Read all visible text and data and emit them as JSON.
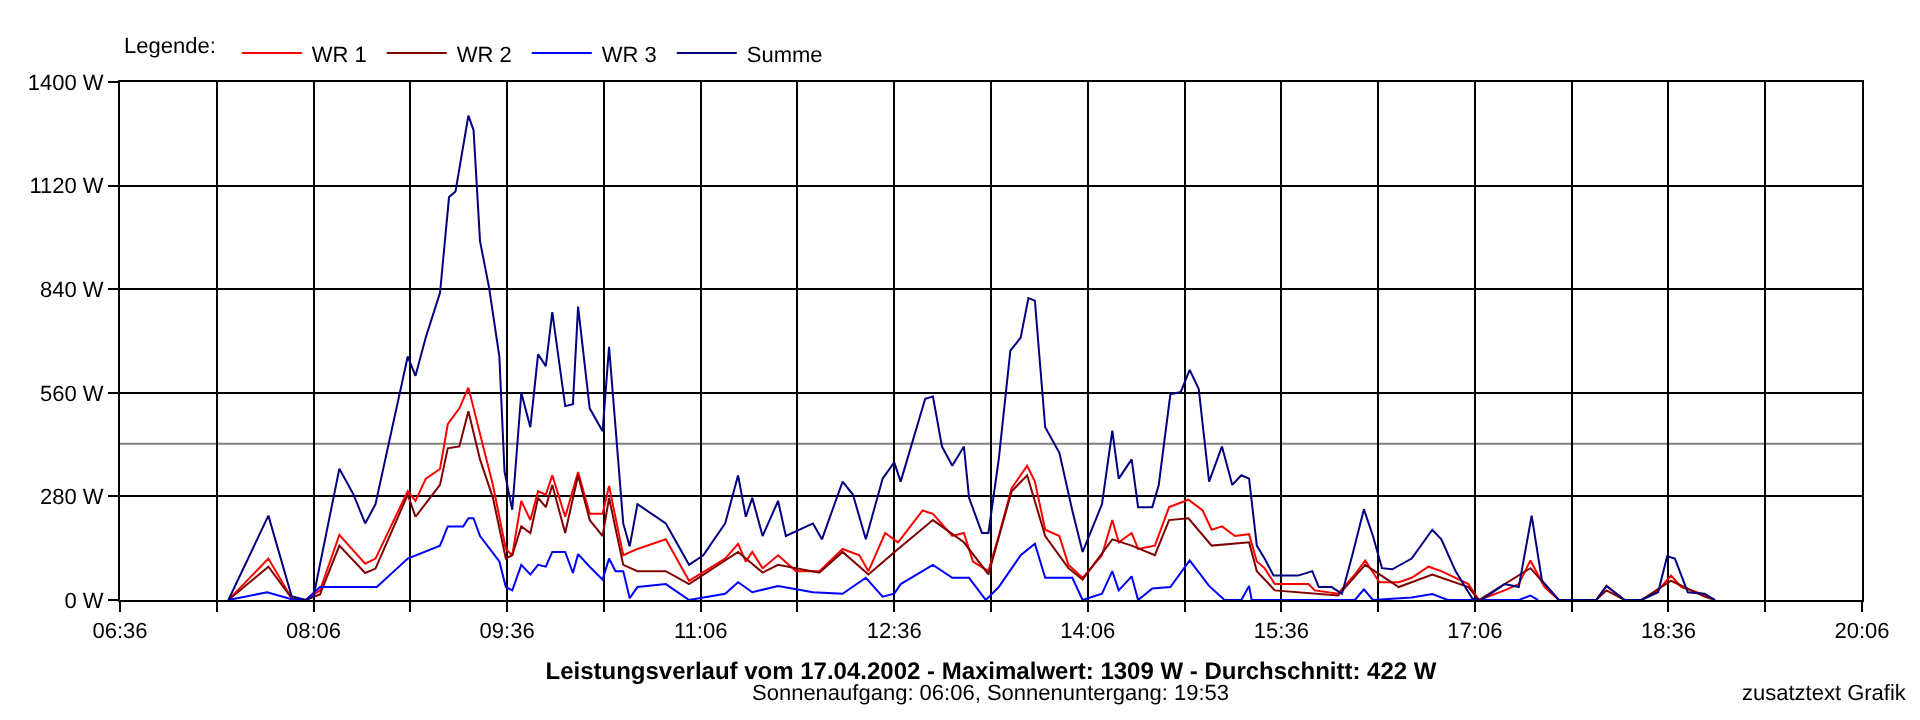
{
  "chart_data": {
    "type": "line",
    "title": "Leistungsverlauf vom 17.04.2002 - Maximalwert: 1309 W - Durchschnitt: 422 W",
    "subtitle": "Sonnenaufgang: 06:06, Sonnenuntergang: 19:53",
    "annotations": [
      "zusatztext Grafik"
    ],
    "legend_title": "Legende:",
    "legend": "top left",
    "grid": true,
    "xlim": [
      6.6,
      20.1
    ],
    "xticks": [
      {
        "value": 6.6,
        "label": "06:36"
      },
      {
        "value": 7.35,
        "label": null
      },
      {
        "value": 8.1,
        "label": "08:06"
      },
      {
        "value": 8.85,
        "label": null
      },
      {
        "value": 9.6,
        "label": "09:36"
      },
      {
        "value": 10.35,
        "label": null
      },
      {
        "value": 11.1,
        "label": "11:06"
      },
      {
        "value": 11.85,
        "label": null
      },
      {
        "value": 12.6,
        "label": "12:36"
      },
      {
        "value": 13.35,
        "label": null
      },
      {
        "value": 14.1,
        "label": "14:06"
      },
      {
        "value": 14.85,
        "label": null
      },
      {
        "value": 15.6,
        "label": "15:36"
      },
      {
        "value": 16.35,
        "label": null
      },
      {
        "value": 17.1,
        "label": "17:06"
      },
      {
        "value": 17.85,
        "label": null
      },
      {
        "value": 18.6,
        "label": "18:36"
      },
      {
        "value": 19.35,
        "label": null
      },
      {
        "value": 20.1,
        "label": "20:06"
      }
    ],
    "ylim": [
      0,
      1400
    ],
    "yticks": [
      {
        "value": 0,
        "label": "0 W"
      },
      {
        "value": 280,
        "label": "280 W"
      },
      {
        "value": 560,
        "label": "560 W"
      },
      {
        "value": 840,
        "label": "840 W"
      },
      {
        "value": 1120,
        "label": "1120 W"
      },
      {
        "value": 1400,
        "label": "1400 W"
      }
    ],
    "ref_lines": [
      {
        "axis": "y",
        "value": 422,
        "color": "#808080"
      }
    ],
    "series": [
      {
        "name": "WR 1",
        "color": "#ff0000",
        "x": [
          7.44,
          7.75,
          7.93,
          8.04,
          8.15,
          8.3,
          8.5,
          8.58,
          8.83,
          8.89,
          8.97,
          9.08,
          9.14,
          9.23,
          9.3,
          9.39,
          9.49,
          9.59,
          9.64,
          9.71,
          9.78,
          9.84,
          9.9,
          9.95,
          10.05,
          10.15,
          10.24,
          10.34,
          10.39,
          10.5,
          10.61,
          10.83,
          11.01,
          11.29,
          11.39,
          11.45,
          11.5,
          11.58,
          11.7,
          11.84,
          12.02,
          12.2,
          12.33,
          12.4,
          12.53,
          12.63,
          12.82,
          12.9,
          13.05,
          13.14,
          13.21,
          13.33,
          13.41,
          13.51,
          13.63,
          13.69,
          13.77,
          13.88,
          13.95,
          14.06,
          14.21,
          14.29,
          14.34,
          14.44,
          14.49,
          14.62,
          14.73,
          14.88,
          14.99,
          15.06,
          15.14,
          15.24,
          15.35,
          15.41,
          15.47,
          15.55,
          15.81,
          15.86,
          16.04,
          16.17,
          16.25,
          16.36,
          16.51,
          16.61,
          16.74,
          16.84,
          17.05,
          17.13,
          17.33,
          17.44,
          17.53,
          17.64,
          17.75,
          18.04,
          18.12,
          18.26,
          18.39,
          18.52,
          18.62,
          18.7,
          18.88,
          18.96
        ],
        "values": [
          0,
          112,
          5,
          0,
          26,
          176,
          98,
          112,
          294,
          268,
          328,
          354,
          475,
          518,
          574,
          449,
          311,
          138,
          121,
          268,
          216,
          294,
          285,
          337,
          225,
          346,
          233,
          233,
          308,
          121,
          138,
          164,
          52,
          112,
          152,
          104,
          130,
          86,
          121,
          78,
          78,
          138,
          121,
          78,
          181,
          156,
          242,
          233,
          173,
          181,
          104,
          78,
          173,
          302,
          363,
          320,
          190,
          173,
          95,
          60,
          121,
          216,
          156,
          181,
          138,
          147,
          251,
          271,
          242,
          190,
          199,
          173,
          178,
          104,
          86,
          43,
          43,
          26,
          17,
          69,
          107,
          48,
          48,
          60,
          90,
          78,
          43,
          0,
          26,
          43,
          107,
          35,
          0,
          0,
          38,
          0,
          0,
          26,
          66,
          35,
          14,
          0
        ]
      },
      {
        "name": "WR 2",
        "color": "#800000",
        "x": [
          7.44,
          7.75,
          7.93,
          8.04,
          8.15,
          8.3,
          8.5,
          8.58,
          8.83,
          8.89,
          9.08,
          9.14,
          9.23,
          9.3,
          9.39,
          9.49,
          9.59,
          9.64,
          9.71,
          9.78,
          9.84,
          9.9,
          9.95,
          10.05,
          10.15,
          10.24,
          10.34,
          10.39,
          10.5,
          10.61,
          10.83,
          11.01,
          11.39,
          11.58,
          11.7,
          12.02,
          12.2,
          12.4,
          12.63,
          12.9,
          13.14,
          13.33,
          13.51,
          13.63,
          13.77,
          13.95,
          14.06,
          14.29,
          14.44,
          14.62,
          14.73,
          14.88,
          15.06,
          15.35,
          15.41,
          15.55,
          16.04,
          16.25,
          16.51,
          16.77,
          17.05,
          17.13,
          17.53,
          17.75,
          18.04,
          18.12,
          18.26,
          18.39,
          18.62,
          18.88,
          18.96
        ],
        "values": [
          0,
          90,
          5,
          0,
          15,
          147,
          73,
          85,
          285,
          225,
          311,
          410,
          415,
          510,
          380,
          276,
          112,
          121,
          199,
          181,
          276,
          251,
          311,
          181,
          337,
          216,
          173,
          276,
          95,
          78,
          78,
          43,
          130,
          74,
          95,
          74,
          130,
          69,
          138,
          216,
          156,
          69,
          294,
          337,
          173,
          86,
          55,
          164,
          147,
          121,
          216,
          221,
          147,
          156,
          78,
          26,
          12,
          95,
          35,
          69,
          35,
          0,
          86,
          0,
          0,
          26,
          0,
          0,
          52,
          9,
          0
        ]
      },
      {
        "name": "WR 3",
        "color": "#0000ff",
        "x": [
          7.44,
          7.74,
          7.95,
          8.04,
          8.15,
          8.59,
          8.83,
          9.08,
          9.14,
          9.26,
          9.3,
          9.34,
          9.39,
          9.54,
          9.59,
          9.64,
          9.71,
          9.78,
          9.84,
          9.9,
          9.95,
          10.05,
          10.11,
          10.15,
          10.24,
          10.34,
          10.39,
          10.44,
          10.5,
          10.55,
          10.61,
          10.83,
          11.01,
          11.29,
          11.39,
          11.5,
          11.7,
          11.97,
          12.2,
          12.38,
          12.51,
          12.6,
          12.65,
          12.9,
          13.05,
          13.18,
          13.31,
          13.41,
          13.58,
          13.69,
          13.77,
          13.98,
          14.06,
          14.21,
          14.29,
          14.34,
          14.44,
          14.49,
          14.6,
          14.74,
          14.89,
          15.04,
          15.16,
          15.29,
          15.35,
          15.37,
          16.17,
          16.24,
          16.31,
          16.61,
          16.77,
          16.89,
          17.44,
          17.53,
          17.59
        ],
        "values": [
          0,
          21,
          0,
          0,
          35,
          35,
          112,
          147,
          199,
          199,
          221,
          221,
          173,
          104,
          35,
          26,
          95,
          69,
          95,
          90,
          130,
          130,
          73,
          124,
          90,
          55,
          112,
          78,
          78,
          5,
          35,
          43,
          0,
          17,
          48,
          21,
          38,
          21,
          17,
          60,
          9,
          17,
          43,
          95,
          60,
          60,
          0,
          35,
          121,
          152,
          60,
          60,
          0,
          17,
          78,
          26,
          64,
          0,
          31,
          35,
          107,
          38,
          0,
          0,
          38,
          0,
          0,
          29,
          0,
          7,
          16,
          0,
          0,
          12,
          0
        ]
      },
      {
        "name": "Summe",
        "color": "#000080",
        "x": [
          7.44,
          7.75,
          7.93,
          8.04,
          8.1,
          8.3,
          8.41,
          8.5,
          8.58,
          8.83,
          8.89,
          8.97,
          9.08,
          9.15,
          9.2,
          9.3,
          9.34,
          9.39,
          9.46,
          9.54,
          9.58,
          9.64,
          9.71,
          9.78,
          9.84,
          9.9,
          9.95,
          10.05,
          10.11,
          10.15,
          10.24,
          10.34,
          10.39,
          10.5,
          10.55,
          10.61,
          10.83,
          11.01,
          11.12,
          11.29,
          11.39,
          11.45,
          11.5,
          11.58,
          11.7,
          11.76,
          11.97,
          12.04,
          12.2,
          12.28,
          12.38,
          12.51,
          12.6,
          12.65,
          12.84,
          12.9,
          12.97,
          13.05,
          13.14,
          13.18,
          13.28,
          13.33,
          13.41,
          13.5,
          13.58,
          13.64,
          13.69,
          13.77,
          13.88,
          13.98,
          14.06,
          14.21,
          14.29,
          14.34,
          14.44,
          14.49,
          14.6,
          14.65,
          14.74,
          14.82,
          14.89,
          14.96,
          15.04,
          15.14,
          15.22,
          15.29,
          15.35,
          15.41,
          15.47,
          15.54,
          15.73,
          15.84,
          15.89,
          15.99,
          16.07,
          16.15,
          16.24,
          16.31,
          16.38,
          16.46,
          16.61,
          16.77,
          16.84,
          16.95,
          17.08,
          17.15,
          17.33,
          17.44,
          17.54,
          17.62,
          17.75,
          18.04,
          18.12,
          18.26,
          18.39,
          18.52,
          18.59,
          18.65,
          18.75,
          18.88,
          18.96
        ],
        "values": [
          0,
          228,
          10,
          0,
          10,
          355,
          285,
          207,
          259,
          658,
          606,
          710,
          830,
          1089,
          1104,
          1309,
          1270,
          970,
          845,
          658,
          347,
          244,
          560,
          467,
          664,
          632,
          778,
          524,
          529,
          793,
          518,
          456,
          684,
          207,
          145,
          259,
          207,
          95,
          121,
          207,
          337,
          225,
          276,
          173,
          268,
          173,
          207,
          164,
          320,
          285,
          164,
          328,
          372,
          320,
          544,
          550,
          415,
          363,
          415,
          276,
          181,
          181,
          380,
          674,
          709,
          816,
          809,
          467,
          398,
          242,
          130,
          259,
          458,
          328,
          380,
          251,
          251,
          311,
          556,
          562,
          622,
          570,
          320,
          415,
          311,
          337,
          328,
          147,
          112,
          66,
          66,
          78,
          35,
          35,
          17,
          121,
          245,
          173,
          86,
          83,
          112,
          190,
          164,
          78,
          4,
          0,
          43,
          35,
          228,
          52,
          0,
          0,
          38,
          0,
          0,
          21,
          118,
          112,
          21,
          17,
          0
        ]
      }
    ]
  }
}
